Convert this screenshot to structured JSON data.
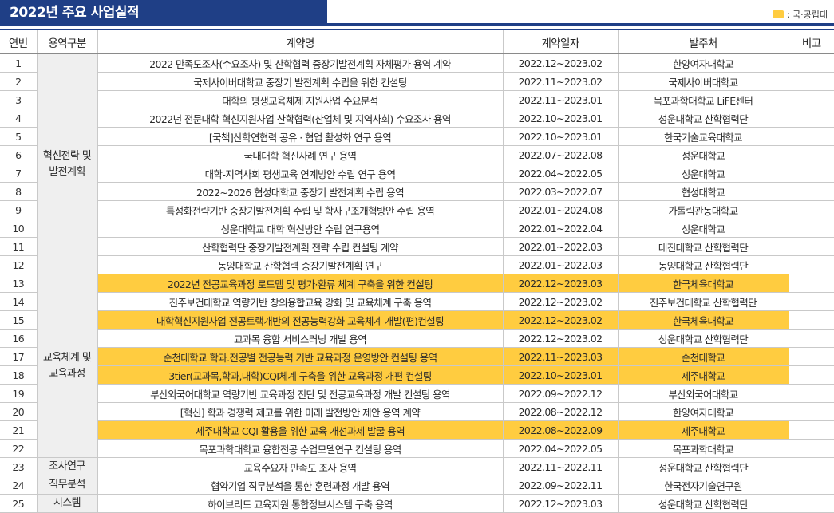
{
  "title": "2022년 주요 사업실적",
  "legend": {
    "label": ": 국·공립대",
    "color": "#ffcc40"
  },
  "headers": {
    "no": "연번",
    "category": "용역구분",
    "contract": "계약명",
    "period": "계약일자",
    "client": "발주처",
    "note": "비고"
  },
  "categories": [
    {
      "label": "혁신전략 및 발전계획",
      "rows": 12
    },
    {
      "label": "교육체계 및 교육과정",
      "rows": 10
    },
    {
      "label": "조사연구",
      "rows": 1
    },
    {
      "label": "직무분석",
      "rows": 1
    },
    {
      "label": "시스템",
      "rows": 1
    }
  ],
  "rows": [
    {
      "no": "1",
      "contract": "2022  만족도조사(수요조사) 및 산학협력 중장기발전계획 자체평가 용역 계약",
      "period": "2022.12~2023.02",
      "client": "한양여자대학교",
      "note": "",
      "public": false
    },
    {
      "no": "2",
      "contract": "국제사이버대학교 중장기 발전계획 수립을 위한 컨설팅",
      "period": "2022.11~2023.02",
      "client": "국제사이버대학교",
      "note": "",
      "public": false
    },
    {
      "no": "3",
      "contract": "대학의 평생교육체제 지원사업 수요분석",
      "period": "2022.11~2023.01",
      "client": "목포과학대학교 LiFE센터",
      "note": "",
      "public": false
    },
    {
      "no": "4",
      "contract": "2022년  전문대학 혁신지원사업 산학협력(산업체 및 지역사회) 수요조사 용역",
      "period": "2022.10~2023.01",
      "client": "성운대학교 산학협력단",
      "note": "",
      "public": false
    },
    {
      "no": "5",
      "contract": "[국책]산학연협력 공유 · 협업 활성화 연구 용역",
      "period": "2022.10~2023.01",
      "client": "한국기술교육대학교",
      "note": "",
      "public": false
    },
    {
      "no": "6",
      "contract": "국내대학 혁신사례 연구 용역",
      "period": "2022.07~2022.08",
      "client": "성운대학교",
      "note": "",
      "public": false
    },
    {
      "no": "7",
      "contract": "대학-지역사회 평생교육 연계방안 수립 연구 용역",
      "period": "2022.04~2022.05",
      "client": "성운대학교",
      "note": "",
      "public": false
    },
    {
      "no": "8",
      "contract": "2022~2026  협성대학교 중장기 발전계획 수립 용역",
      "period": "2022.03~2022.07",
      "client": "협성대학교",
      "note": "",
      "public": false
    },
    {
      "no": "9",
      "contract": "특성화전략기반 중장기발전계획 수립 및 학사구조개혁방안 수립 용역",
      "period": "2022.01~2024.08",
      "client": "가톨릭관동대학교",
      "note": "",
      "public": false
    },
    {
      "no": "10",
      "contract": "성운대학교 대학 혁신방안 수립 연구용역",
      "period": "2022.01~2022.04",
      "client": "성운대학교",
      "note": "",
      "public": false
    },
    {
      "no": "11",
      "contract": "산학협력단 중장기발전계획 전략 수립 컨설팅 계약",
      "period": "2022.01~2022.03",
      "client": "대진대학교 산학협력단",
      "note": "",
      "public": false
    },
    {
      "no": "12",
      "contract": "동양대학교 산학협력 중장기발전계획 연구",
      "period": "2022.01~2022.03",
      "client": "동양대학교 산학협력단",
      "note": "",
      "public": false
    },
    {
      "no": "13",
      "contract": "2022년  전공교육과정 로드맵 및 평가·환류 체계 구축을 위한 컨설팅",
      "period": "2022.12~2023.03",
      "client": "한국체육대학교",
      "note": "",
      "public": true
    },
    {
      "no": "14",
      "contract": "진주보건대학교 역량기반 창의융합교육 강화 및 교육체계 구축 용역",
      "period": "2022.12~2023.02",
      "client": "진주보건대학교 산학협력단",
      "note": "",
      "public": false
    },
    {
      "no": "15",
      "contract": "대학혁신지원사업 전공트랙개반의 전공능력강화 교육체계 개발(편)컨설팅",
      "period": "2022.12~2023.02",
      "client": "한국체육대학교",
      "note": "",
      "public": true
    },
    {
      "no": "16",
      "contract": "교과목 융합 서비스러닝 개발 용역",
      "period": "2022.12~2023.02",
      "client": "성운대학교 산학협력단",
      "note": "",
      "public": false
    },
    {
      "no": "17",
      "contract": "순천대학교 학과.전공별 전공능력 기반 교육과정 운영방안 컨설팅 용역",
      "period": "2022.11~2023.03",
      "client": "순천대학교",
      "note": "",
      "public": true
    },
    {
      "no": "18",
      "contract": "3tier(교과목,학과,대학)CQI체계  구축을 위한 교육과정 개편 컨설팅",
      "period": "2022.10~2023.01",
      "client": "제주대학교",
      "note": "",
      "public": true
    },
    {
      "no": "19",
      "contract": "부산외국어대학교 역량기반 교육과정 진단 및 전공교육과정 개발 컨설팅 용역",
      "period": "2022.09~2022.12",
      "client": "부산외국어대학교",
      "note": "",
      "public": false
    },
    {
      "no": "20",
      "contract": "[혁신] 학과 경쟁력 제고를 위한 미래 발전방안 제안 용역 계약",
      "period": "2022.08~2022.12",
      "client": "한양여자대학교",
      "note": "",
      "public": false
    },
    {
      "no": "21",
      "contract": "제주대학교 CQI 활용을 위한 교육 개선과제 발굴 용역",
      "period": "2022.08~2022.09",
      "client": "제주대학교",
      "note": "",
      "public": true
    },
    {
      "no": "22",
      "contract": "목포과학대학교 융합전공 수업모델연구 컨설팅 용역",
      "period": "2022.04~2022.05",
      "client": "목포과학대학교",
      "note": "",
      "public": false
    },
    {
      "no": "23",
      "contract": "교육수요자 만족도 조사 용역",
      "period": "2022.11~2022.11",
      "client": "성운대학교 산학협력단",
      "note": "",
      "public": false
    },
    {
      "no": "24",
      "contract": "협약기업 직무분석을 통한 훈련과정 개발 용역",
      "period": "2022.09~2022.11",
      "client": "한국전자기술연구원",
      "note": "",
      "public": false
    },
    {
      "no": "25",
      "contract": "하이브리드 교육지원 통합정보시스템 구축 용역",
      "period": "2022.12~2023.03",
      "client": "성운대학교 산학협력단",
      "note": "",
      "public": false
    }
  ]
}
